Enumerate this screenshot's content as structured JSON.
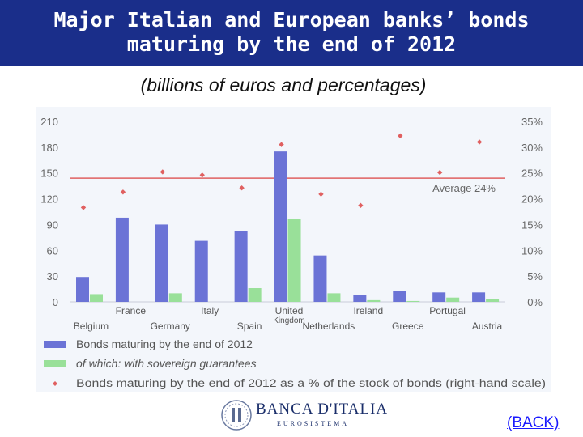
{
  "slide": {
    "title_line1": "Major Italian and European banks’ bonds",
    "title_line2": "maturing by the end of 2012",
    "subtitle": "(billions of euros and percentages)",
    "back_link": "(BACK)"
  },
  "logo": {
    "name": "BANCA D'ITALIA",
    "subtitle": "EUROSISTEMA"
  },
  "colors": {
    "title_bg": "#1a2e8a",
    "bar_total": "#6b73d6",
    "bar_guaranteed": "#99e099",
    "marker": "#e06060",
    "average_line": "#e06060",
    "link": "#1a1aff"
  },
  "chart_data": {
    "type": "bar",
    "categories": [
      "Belgium",
      "France",
      "Germany",
      "Italy",
      "Spain",
      "United Kingdom",
      "Netherlands",
      "Ireland",
      "Greece",
      "Portugal",
      "Austria"
    ],
    "series": [
      {
        "name": "Bonds maturing by the end of 2012",
        "type": "bar",
        "axis": "left",
        "values": [
          29,
          98,
          90,
          71,
          82,
          175,
          54,
          8,
          13,
          11,
          11
        ]
      },
      {
        "name": "of which: with sovereign guarantees",
        "type": "bar",
        "axis": "left",
        "values": [
          9,
          0,
          10,
          0,
          16,
          97,
          10,
          2,
          1,
          5,
          3
        ]
      },
      {
        "name": "Bonds maturing by the end of 2012 as a % of the stock of bonds (right-hand scale)",
        "type": "scatter",
        "axis": "right",
        "values": [
          18.3,
          21.3,
          25.2,
          24.6,
          22.1,
          30.5,
          20.9,
          18.7,
          32.2,
          25.1,
          31.0
        ]
      }
    ],
    "reference_line": {
      "label": "Average 24%",
      "value": 24,
      "axis": "right"
    },
    "y_left": {
      "ticks": [
        "0",
        "30",
        "60",
        "90",
        "120",
        "150",
        "180",
        "210"
      ],
      "lim": [
        0,
        210
      ]
    },
    "y_right": {
      "ticks": [
        "0%",
        "5%",
        "10%",
        "15%",
        "20%",
        "25%",
        "30%",
        "35%"
      ],
      "lim": [
        0,
        35
      ]
    },
    "grid": false,
    "legend_position": "bottom"
  }
}
